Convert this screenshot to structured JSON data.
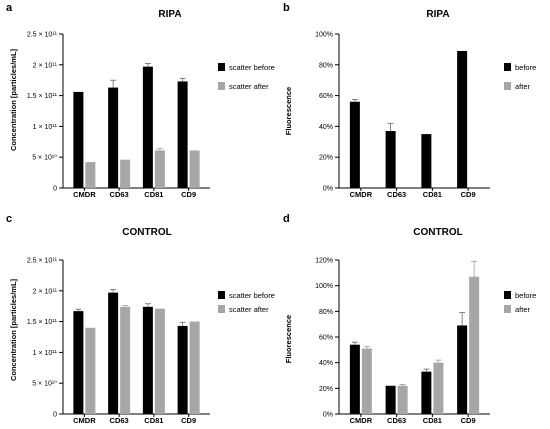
{
  "chart_data": [
    {
      "panel": "a",
      "type": "bar",
      "title": "RIPA",
      "ylabel": "Concentration [particles/mL]",
      "categories": [
        "CMDR",
        "CD63",
        "CD81",
        "CD9"
      ],
      "ylim": [
        0,
        250000000000
      ],
      "ticks": [
        {
          "value": 0,
          "label": "0"
        },
        {
          "value": 50000000000,
          "label": "5 × 10¹⁰"
        },
        {
          "value": 100000000000,
          "label": "1 × 10¹¹"
        },
        {
          "value": 150000000000,
          "label": "1.5 × 10¹¹"
        },
        {
          "value": 200000000000,
          "label": "2 × 10¹¹"
        },
        {
          "value": 250000000000,
          "label": "2.5 × 10¹¹"
        }
      ],
      "series": [
        {
          "name": "scatter before",
          "color": "#000000",
          "values": [
            156000000000,
            163000000000,
            197000000000,
            173000000000
          ],
          "errors": [
            0,
            12000000000,
            5000000000,
            5000000000
          ]
        },
        {
          "name": "scatter after",
          "color": "#a6a6a6",
          "values": [
            42000000000,
            46000000000,
            61000000000,
            61000000000
          ],
          "errors": [
            0,
            0,
            3000000000,
            0
          ]
        }
      ]
    },
    {
      "panel": "b",
      "type": "bar",
      "title": "RIPA",
      "ylabel": "Fluorescence",
      "categories": [
        "CMDR",
        "CD63",
        "CD81",
        "CD9"
      ],
      "ylim": [
        0,
        100
      ],
      "ticks": [
        {
          "value": 0,
          "label": "0%"
        },
        {
          "value": 20,
          "label": "20%"
        },
        {
          "value": 40,
          "label": "40%"
        },
        {
          "value": 60,
          "label": "60%"
        },
        {
          "value": 80,
          "label": "80%"
        },
        {
          "value": 100,
          "label": "100%"
        }
      ],
      "series": [
        {
          "name": "before",
          "color": "#000000",
          "values": [
            56,
            37,
            35,
            89
          ],
          "errors": [
            1.5,
            5,
            0,
            0
          ]
        },
        {
          "name": "after",
          "color": "#a6a6a6",
          "values": [
            0,
            0,
            0,
            0
          ],
          "errors": [
            0,
            0,
            0,
            0
          ]
        }
      ]
    },
    {
      "panel": "c",
      "type": "bar",
      "title": "CONTROL",
      "ylabel": "Concentration [particles/mL]",
      "categories": [
        "CMDR",
        "CD63",
        "CD81",
        "CD9"
      ],
      "ylim": [
        0,
        250000000000
      ],
      "ticks": [
        {
          "value": 0,
          "label": "0"
        },
        {
          "value": 50000000000,
          "label": "5 × 10¹⁰"
        },
        {
          "value": 100000000000,
          "label": "1 × 10¹¹"
        },
        {
          "value": 150000000000,
          "label": "1.5 × 10¹¹"
        },
        {
          "value": 200000000000,
          "label": "2 × 10¹¹"
        },
        {
          "value": 250000000000,
          "label": "2.5 × 10¹¹"
        }
      ],
      "series": [
        {
          "name": "scatter before",
          "color": "#000000",
          "values": [
            167000000000,
            197000000000,
            174000000000,
            143000000000
          ],
          "errors": [
            3000000000,
            5000000000,
            5000000000,
            6000000000
          ]
        },
        {
          "name": "scatter after",
          "color": "#a6a6a6",
          "values": [
            140000000000,
            174000000000,
            171000000000,
            150000000000
          ],
          "errors": [
            0,
            2000000000,
            0,
            0
          ]
        }
      ]
    },
    {
      "panel": "d",
      "type": "bar",
      "title": "CONTROL",
      "ylabel": "Fluorescence",
      "categories": [
        "CMDR",
        "CD63",
        "CD81",
        "CD9"
      ],
      "ylim": [
        0,
        120
      ],
      "ticks": [
        {
          "value": 0,
          "label": "0%"
        },
        {
          "value": 20,
          "label": "20%"
        },
        {
          "value": 40,
          "label": "40%"
        },
        {
          "value": 60,
          "label": "60%"
        },
        {
          "value": 80,
          "label": "80%"
        },
        {
          "value": 100,
          "label": "100%"
        },
        {
          "value": 120,
          "label": "120%"
        }
      ],
      "series": [
        {
          "name": "before",
          "color": "#000000",
          "values": [
            54,
            22,
            33,
            69
          ],
          "errors": [
            2,
            0,
            2,
            10
          ]
        },
        {
          "name": "after",
          "color": "#a6a6a6",
          "values": [
            51,
            22,
            40,
            107
          ],
          "errors": [
            1.5,
            1,
            2,
            12
          ]
        }
      ]
    }
  ]
}
